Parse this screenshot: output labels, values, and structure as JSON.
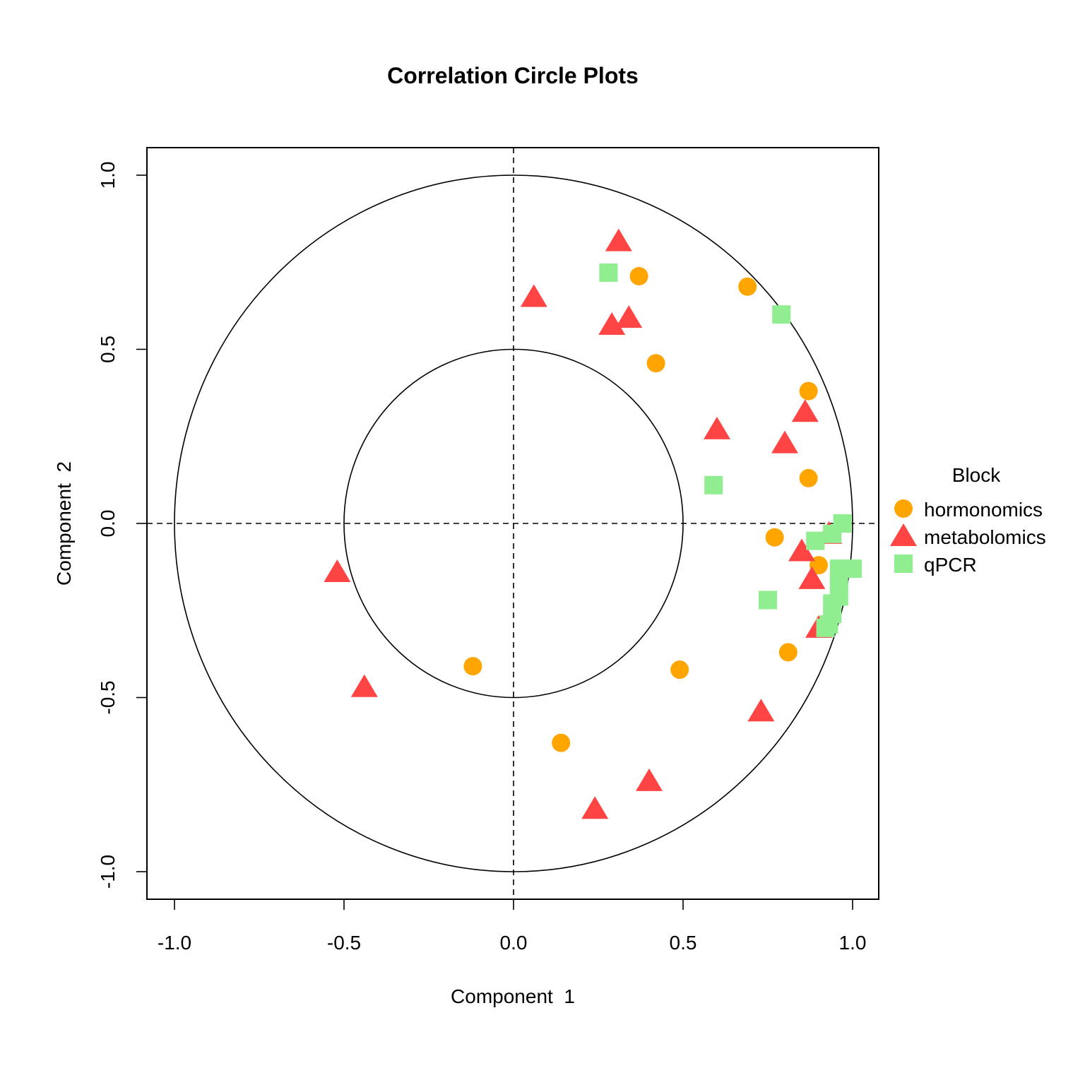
{
  "chart_data": {
    "type": "scatter",
    "title": "Correlation Circle Plots",
    "xlabel": "Component  1",
    "ylabel": "Component  2",
    "xlim": [
      -1.1,
      1.08
    ],
    "ylim": [
      -1.08,
      1.08
    ],
    "xticks": [
      "-1.0",
      "-0.5",
      "0.0",
      "0.5",
      "1.0"
    ],
    "yticks": [
      "-1.0",
      "-0.5",
      "0.0",
      "0.5",
      "1.0"
    ],
    "circles": [
      0.5,
      1.0
    ],
    "reference_lines": "dashed at x=0 and y=0",
    "legend": {
      "title": "Block",
      "position": "right",
      "entries": [
        "hormonomics",
        "metabolomics",
        "qPCR"
      ]
    },
    "series": [
      {
        "name": "hormonomics",
        "shape": "circle",
        "color": "#FFA500",
        "points": [
          [
            0.37,
            0.71
          ],
          [
            0.69,
            0.68
          ],
          [
            0.42,
            0.46
          ],
          [
            0.87,
            0.38
          ],
          [
            0.87,
            0.13
          ],
          [
            0.77,
            -0.04
          ],
          [
            0.9,
            -0.12
          ],
          [
            0.81,
            -0.37
          ],
          [
            0.49,
            -0.42
          ],
          [
            -0.12,
            -0.41
          ],
          [
            0.14,
            -0.63
          ]
        ]
      },
      {
        "name": "metabolomics",
        "shape": "triangle",
        "color": "#FF4444",
        "points": [
          [
            0.31,
            0.81
          ],
          [
            0.06,
            0.65
          ],
          [
            0.34,
            0.59
          ],
          [
            0.29,
            0.57
          ],
          [
            0.86,
            0.32
          ],
          [
            0.6,
            0.27
          ],
          [
            0.8,
            0.23
          ],
          [
            0.93,
            -0.03
          ],
          [
            0.85,
            -0.08
          ],
          [
            0.88,
            -0.16
          ],
          [
            0.9,
            -0.3
          ],
          [
            -0.52,
            -0.14
          ],
          [
            -0.44,
            -0.47
          ],
          [
            0.73,
            -0.54
          ],
          [
            0.4,
            -0.74
          ],
          [
            0.24,
            -0.82
          ]
        ]
      },
      {
        "name": "qPCR",
        "shape": "square",
        "color": "#90EE90",
        "points": [
          [
            0.28,
            0.72
          ],
          [
            0.79,
            0.6
          ],
          [
            0.59,
            0.11
          ],
          [
            0.97,
            0.0
          ],
          [
            0.94,
            -0.03
          ],
          [
            0.89,
            -0.05
          ],
          [
            1.0,
            -0.13
          ],
          [
            0.96,
            -0.13
          ],
          [
            0.96,
            -0.17
          ],
          [
            0.96,
            -0.21
          ],
          [
            0.94,
            -0.23
          ],
          [
            0.75,
            -0.22
          ],
          [
            0.94,
            -0.26
          ],
          [
            0.93,
            -0.29
          ],
          [
            0.92,
            -0.3
          ]
        ]
      }
    ]
  }
}
